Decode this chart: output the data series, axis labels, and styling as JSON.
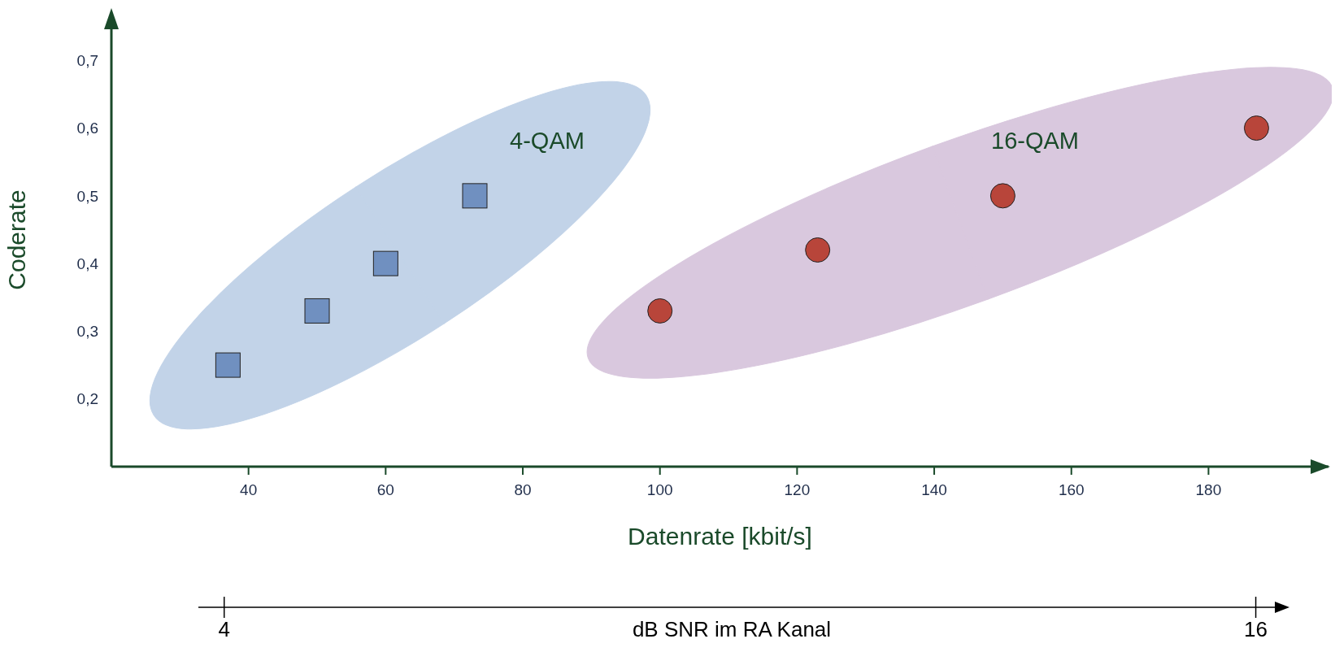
{
  "chart_data": {
    "type": "scatter",
    "xlabel": "Datenrate [kbit/s]",
    "ylabel": "Coderate",
    "x2label": "dB SNR im RA Kanal",
    "xlim": [
      20,
      197.5
    ],
    "xticks": [
      40,
      60,
      80,
      100,
      120,
      140,
      160,
      180
    ],
    "ylim": [
      0.1,
      0.77
    ],
    "yticks": [
      {
        "value": 0.2,
        "label": "0,2"
      },
      {
        "value": 0.3,
        "label": "0,3"
      },
      {
        "value": 0.4,
        "label": "0,4"
      },
      {
        "value": 0.5,
        "label": "0,5"
      },
      {
        "value": 0.6,
        "label": "0,6"
      },
      {
        "value": 0.7,
        "label": "0,7"
      }
    ],
    "x2lim": [
      3.7,
      16.25
    ],
    "x2ticks": [
      4,
      16
    ],
    "grid": false,
    "legend": false,
    "series": [
      {
        "name": "4-QAM",
        "color": "#7090c0",
        "marker": "square",
        "x": [
          37,
          50,
          60,
          73
        ],
        "values": [
          0.25,
          0.33,
          0.4,
          0.5
        ]
      },
      {
        "name": "16-QAM",
        "color": "#b8453a",
        "marker": "circle",
        "x": [
          100,
          123,
          150,
          187
        ],
        "values": [
          0.33,
          0.42,
          0.5,
          0.6
        ]
      }
    ]
  }
}
